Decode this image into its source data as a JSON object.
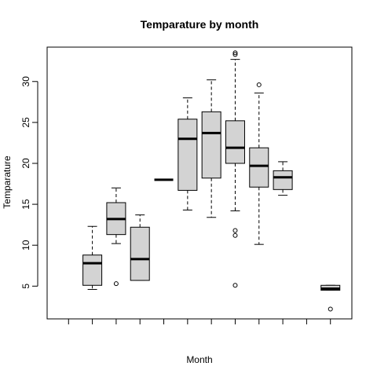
{
  "chart_data": {
    "type": "box",
    "title": "Temparature by month",
    "xlabel": "Month",
    "ylabel": "Temparature",
    "ylim": [
      1,
      34.2
    ],
    "yticks": [
      5,
      10,
      15,
      20,
      25,
      30
    ],
    "box_fill": "#d3d3d3",
    "series": [
      {
        "position": 2,
        "whisker_low": 4.6,
        "q1": 5.1,
        "median": 7.8,
        "q3": 8.8,
        "whisker_high": 12.3,
        "outliers": []
      },
      {
        "position": 3,
        "whisker_low": 10.2,
        "q1": 11.3,
        "median": 13.2,
        "q3": 15.2,
        "whisker_high": 17.0,
        "outliers": [
          5.3
        ]
      },
      {
        "position": 4,
        "whisker_low": 5.7,
        "q1": 5.7,
        "median": 8.3,
        "q3": 12.2,
        "whisker_high": 13.7,
        "outliers": []
      },
      {
        "position": 5,
        "whisker_low": 18.0,
        "q1": 18.0,
        "median": 18.0,
        "q3": 18.0,
        "whisker_high": 18.0,
        "outliers": []
      },
      {
        "position": 6,
        "whisker_low": 14.3,
        "q1": 16.7,
        "median": 23.0,
        "q3": 25.4,
        "whisker_high": 28.0,
        "outliers": []
      },
      {
        "position": 7,
        "whisker_low": 13.4,
        "q1": 18.2,
        "median": 23.7,
        "q3": 26.3,
        "whisker_high": 30.2,
        "outliers": []
      },
      {
        "position": 8,
        "whisker_low": 14.2,
        "q1": 20.0,
        "median": 21.9,
        "q3": 25.2,
        "whisker_high": 32.7,
        "outliers": [
          33.3,
          33.5,
          11.8,
          11.2,
          5.1
        ]
      },
      {
        "position": 9,
        "whisker_low": 10.1,
        "q1": 17.1,
        "median": 19.7,
        "q3": 21.9,
        "whisker_high": 28.6,
        "outliers": [
          29.6
        ]
      },
      {
        "position": 10,
        "whisker_low": 16.1,
        "q1": 16.8,
        "median": 18.3,
        "q3": 19.1,
        "whisker_high": 20.2,
        "outliers": []
      },
      {
        "position": 12,
        "whisker_low": 4.5,
        "q1": 4.5,
        "median": 4.7,
        "q3": 5.1,
        "whisker_high": 5.1,
        "outliers": [
          2.2
        ]
      }
    ],
    "x_tick_positions": [
      1,
      2,
      3,
      4,
      5,
      6,
      7,
      8,
      9,
      10,
      11,
      12
    ],
    "xlim": [
      0.1,
      12.9
    ]
  }
}
